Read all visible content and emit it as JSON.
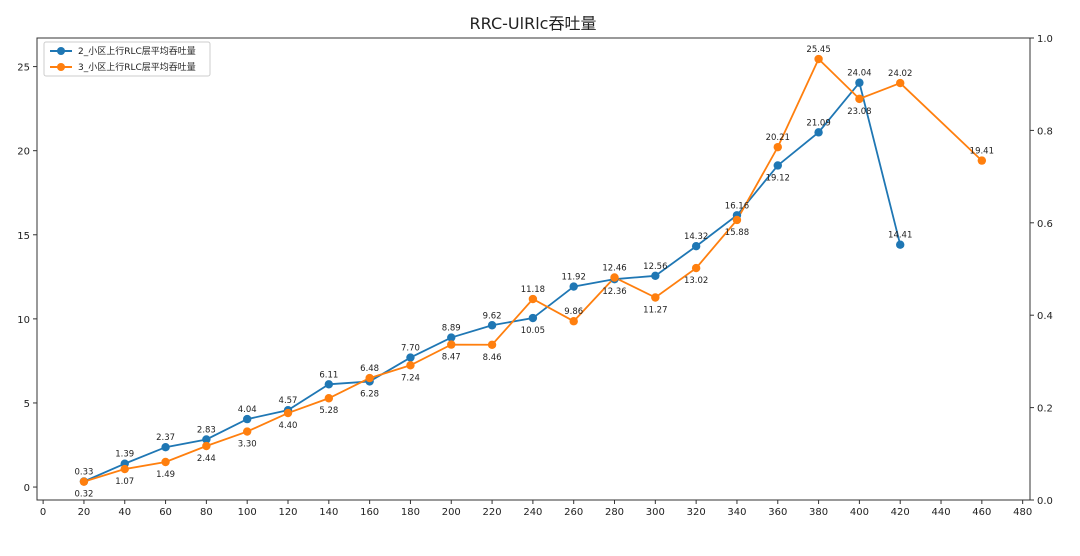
{
  "chart_data": {
    "type": "line",
    "title": "RRC-UlRlc吞吐量",
    "xlabel": "",
    "ylabel": "",
    "xlim": [
      -3,
      483.6
    ],
    "ylim": [
      -0.77,
      26.7
    ],
    "y2lim": [
      0,
      1.0
    ],
    "xticks": [
      0,
      20,
      40,
      60,
      80,
      100,
      120,
      140,
      160,
      180,
      200,
      220,
      240,
      260,
      280,
      300,
      320,
      340,
      360,
      380,
      400,
      420,
      440,
      460,
      480
    ],
    "yticks": [
      0,
      5,
      10,
      15,
      20,
      25
    ],
    "y2ticks": [
      "0.0",
      "0.2",
      "0.4",
      "0.6",
      "0.8",
      "1.0"
    ],
    "grid": false,
    "legend_position": "top-left",
    "series": [
      {
        "name": "2_小区上行RLC层平均吞吐量",
        "color": "#1f77b4",
        "x": [
          20,
          40,
          60,
          80,
          100,
          120,
          140,
          160,
          180,
          200,
          220,
          240,
          260,
          280,
          300,
          320,
          340,
          360,
          380,
          400,
          420
        ],
        "values": [
          0.33,
          1.39,
          2.37,
          2.83,
          4.04,
          4.57,
          6.11,
          6.28,
          7.7,
          8.89,
          9.62,
          10.05,
          11.92,
          12.36,
          12.56,
          14.32,
          16.16,
          19.12,
          21.09,
          24.04,
          14.41
        ]
      },
      {
        "name": "3_小区上行RLC层平均吞吐量",
        "color": "#ff7f0e",
        "x": [
          20,
          40,
          60,
          80,
          100,
          120,
          140,
          160,
          180,
          200,
          220,
          240,
          260,
          280,
          300,
          320,
          340,
          360,
          380,
          400,
          420,
          460
        ],
        "values": [
          0.32,
          1.07,
          1.49,
          2.44,
          3.3,
          4.4,
          5.28,
          6.48,
          7.24,
          8.47,
          8.46,
          11.18,
          9.86,
          12.46,
          11.27,
          13.02,
          15.88,
          20.21,
          25.45,
          23.08,
          24.02,
          19.41
        ]
      }
    ]
  }
}
